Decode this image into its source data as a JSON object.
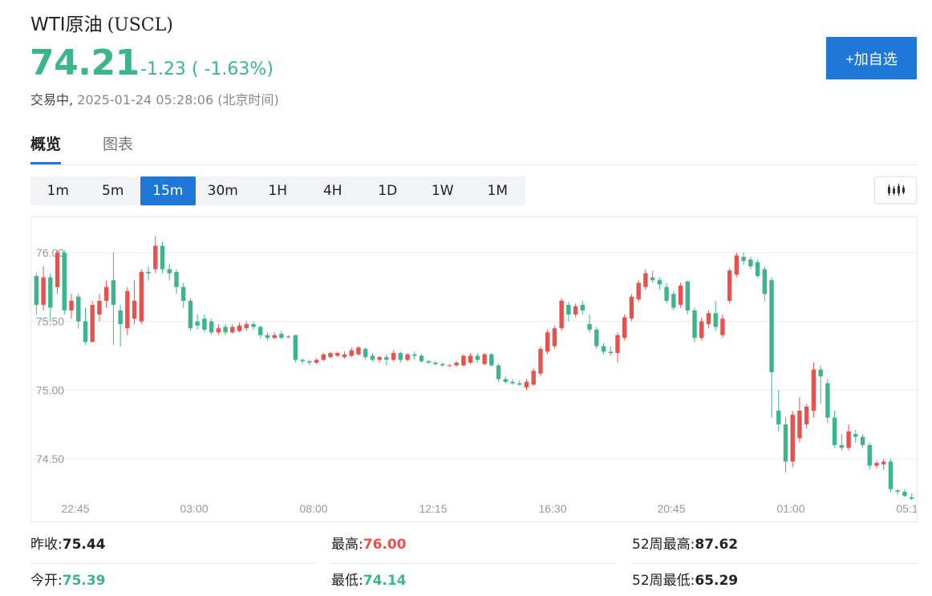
{
  "header": {
    "name": "WTI原油",
    "code": "(USCL)",
    "price": "74.21",
    "change": "-1.23 ( -1.63%)",
    "status_label": "交易中,",
    "timestamp": "2025-01-24 05:28:06 (北京时间)",
    "add_button": "+加自选"
  },
  "tabs": [
    "概览",
    "图表"
  ],
  "periods": [
    "1m",
    "5m",
    "15m",
    "30m",
    "1H",
    "4H",
    "1D",
    "1W",
    "1M"
  ],
  "active_period": "15m",
  "colors": {
    "up": "#e8524e",
    "down": "#3cb58c",
    "accent": "#1f78d8"
  },
  "stats": {
    "prev_close_label": "昨收:",
    "prev_close": "75.44",
    "open_label": "今开:",
    "open": "75.39",
    "high_label": "最高:",
    "high": "76.00",
    "low_label": "最低:",
    "low": "74.14",
    "wk52_high_label": "52周最高:",
    "wk52_high": "87.62",
    "wk52_low_label": "52周最低:",
    "wk52_low": "65.29"
  },
  "chart_data": {
    "type": "candlestick",
    "y_ticks": [
      "76.00",
      "75.50",
      "75.00",
      "74.50"
    ],
    "x_ticks": [
      "22:45",
      "03:00",
      "08:00",
      "12:15",
      "16:30",
      "20:45",
      "01:00",
      "05:1"
    ],
    "ylim": [
      74.2,
      76.25
    ],
    "grid": true,
    "series": [
      {
        "o": 75.83,
        "c": 75.62,
        "h": 75.85,
        "l": 75.55
      },
      {
        "o": 75.62,
        "c": 75.82,
        "h": 75.9,
        "l": 75.58
      },
      {
        "o": 75.82,
        "c": 75.6,
        "h": 75.85,
        "l": 75.5
      },
      {
        "o": 75.75,
        "c": 76.0,
        "h": 76.02,
        "l": 75.7
      },
      {
        "o": 76.0,
        "c": 75.58,
        "h": 76.02,
        "l": 75.55
      },
      {
        "o": 75.58,
        "c": 75.65,
        "h": 75.7,
        "l": 75.52
      },
      {
        "o": 75.68,
        "c": 75.5,
        "h": 75.7,
        "l": 75.45
      },
      {
        "o": 75.5,
        "c": 75.35,
        "h": 75.6,
        "l": 75.33
      },
      {
        "o": 75.35,
        "c": 75.62,
        "h": 75.65,
        "l": 75.35
      },
      {
        "o": 75.55,
        "c": 75.65,
        "h": 75.7,
        "l": 75.5
      },
      {
        "o": 75.65,
        "c": 75.75,
        "h": 75.8,
        "l": 75.6
      },
      {
        "o": 75.8,
        "c": 75.62,
        "h": 76.0,
        "l": 75.33
      },
      {
        "o": 75.58,
        "c": 75.48,
        "h": 75.62,
        "l": 75.32
      },
      {
        "o": 75.45,
        "c": 75.72,
        "h": 75.75,
        "l": 75.4
      },
      {
        "o": 75.52,
        "c": 75.65,
        "h": 75.8,
        "l": 75.48
      },
      {
        "o": 75.5,
        "c": 75.86,
        "h": 75.88,
        "l": 75.48
      },
      {
        "o": 75.86,
        "c": 75.85,
        "h": 75.9,
        "l": 75.8
      },
      {
        "o": 75.88,
        "c": 76.05,
        "h": 76.12,
        "l": 75.85
      },
      {
        "o": 76.05,
        "c": 75.88,
        "h": 76.08,
        "l": 75.85
      },
      {
        "o": 75.88,
        "c": 75.85,
        "h": 75.92,
        "l": 75.8
      },
      {
        "o": 75.86,
        "c": 75.75,
        "h": 75.88,
        "l": 75.7
      },
      {
        "o": 75.75,
        "c": 75.65,
        "h": 75.78,
        "l": 75.6
      },
      {
        "o": 75.65,
        "c": 75.45,
        "h": 75.67,
        "l": 75.43
      },
      {
        "o": 75.5,
        "c": 75.47,
        "h": 75.55,
        "l": 75.44
      },
      {
        "o": 75.52,
        "c": 75.44,
        "h": 75.55,
        "l": 75.42
      },
      {
        "o": 75.5,
        "c": 75.42,
        "h": 75.52,
        "l": 75.4
      },
      {
        "o": 75.42,
        "c": 75.45,
        "h": 75.48,
        "l": 75.4
      },
      {
        "o": 75.46,
        "c": 75.42,
        "h": 75.48,
        "l": 75.4
      },
      {
        "o": 75.42,
        "c": 75.46,
        "h": 75.48,
        "l": 75.41
      },
      {
        "o": 75.43,
        "c": 75.47,
        "h": 75.49,
        "l": 75.42
      },
      {
        "o": 75.45,
        "c": 75.48,
        "h": 75.5,
        "l": 75.43
      },
      {
        "o": 75.48,
        "c": 75.46,
        "h": 75.5,
        "l": 75.44
      },
      {
        "o": 75.46,
        "c": 75.4,
        "h": 75.47,
        "l": 75.38
      },
      {
        "o": 75.4,
        "c": 75.38,
        "h": 75.42,
        "l": 75.36
      },
      {
        "o": 75.38,
        "c": 75.4,
        "h": 75.42,
        "l": 75.37
      },
      {
        "o": 75.41,
        "c": 75.38,
        "h": 75.43,
        "l": 75.37
      },
      {
        "o": 75.39,
        "c": 75.39,
        "h": 75.4,
        "l": 75.38
      },
      {
        "o": 75.4,
        "c": 75.22,
        "h": 75.4,
        "l": 75.2
      },
      {
        "o": 75.22,
        "c": 75.21,
        "h": 75.23,
        "l": 75.19
      },
      {
        "o": 75.21,
        "c": 75.2,
        "h": 75.22,
        "l": 75.18
      },
      {
        "o": 75.2,
        "c": 75.22,
        "h": 75.23,
        "l": 75.19
      },
      {
        "o": 75.22,
        "c": 75.26,
        "h": 75.27,
        "l": 75.21
      },
      {
        "o": 75.24,
        "c": 75.27,
        "h": 75.28,
        "l": 75.23
      },
      {
        "o": 75.25,
        "c": 75.27,
        "h": 75.28,
        "l": 75.24
      },
      {
        "o": 75.24,
        "c": 75.26,
        "h": 75.28,
        "l": 75.23
      },
      {
        "o": 75.25,
        "c": 75.29,
        "h": 75.31,
        "l": 75.24
      },
      {
        "o": 75.26,
        "c": 75.31,
        "h": 75.32,
        "l": 75.25
      },
      {
        "o": 75.3,
        "c": 75.24,
        "h": 75.31,
        "l": 75.22
      },
      {
        "o": 75.25,
        "c": 75.22,
        "h": 75.27,
        "l": 75.21
      },
      {
        "o": 75.22,
        "c": 75.24,
        "h": 75.25,
        "l": 75.2
      },
      {
        "o": 75.24,
        "c": 75.22,
        "h": 75.26,
        "l": 75.18
      },
      {
        "o": 75.22,
        "c": 75.27,
        "h": 75.29,
        "l": 75.21
      },
      {
        "o": 75.27,
        "c": 75.22,
        "h": 75.28,
        "l": 75.2
      },
      {
        "o": 75.22,
        "c": 75.26,
        "h": 75.27,
        "l": 75.21
      },
      {
        "o": 75.26,
        "c": 75.25,
        "h": 75.28,
        "l": 75.22
      },
      {
        "o": 75.25,
        "c": 75.21,
        "h": 75.26,
        "l": 75.2
      },
      {
        "o": 75.21,
        "c": 75.2,
        "h": 75.22,
        "l": 75.19
      },
      {
        "o": 75.2,
        "c": 75.19,
        "h": 75.21,
        "l": 75.18
      },
      {
        "o": 75.19,
        "c": 75.18,
        "h": 75.2,
        "l": 75.17
      },
      {
        "o": 75.18,
        "c": 75.18,
        "h": 75.19,
        "l": 75.17
      },
      {
        "o": 75.18,
        "c": 75.2,
        "h": 75.21,
        "l": 75.17
      },
      {
        "o": 75.18,
        "c": 75.25,
        "h": 75.26,
        "l": 75.17
      },
      {
        "o": 75.2,
        "c": 75.25,
        "h": 75.27,
        "l": 75.19
      },
      {
        "o": 75.25,
        "c": 75.22,
        "h": 75.27,
        "l": 75.2
      },
      {
        "o": 75.19,
        "c": 75.26,
        "h": 75.27,
        "l": 75.18
      },
      {
        "o": 75.26,
        "c": 75.18,
        "h": 75.27,
        "l": 75.17
      },
      {
        "o": 75.18,
        "c": 75.08,
        "h": 75.19,
        "l": 75.06
      },
      {
        "o": 75.08,
        "c": 75.06,
        "h": 75.1,
        "l": 75.05
      },
      {
        "o": 75.06,
        "c": 75.05,
        "h": 75.08,
        "l": 75.04
      },
      {
        "o": 75.05,
        "c": 75.04,
        "h": 75.07,
        "l": 75.03
      },
      {
        "o": 75.02,
        "c": 75.06,
        "h": 75.08,
        "l": 75.0
      },
      {
        "o": 75.04,
        "c": 75.14,
        "h": 75.16,
        "l": 75.03
      },
      {
        "o": 75.12,
        "c": 75.3,
        "h": 75.32,
        "l": 75.1
      },
      {
        "o": 75.28,
        "c": 75.42,
        "h": 75.44,
        "l": 75.26
      },
      {
        "o": 75.32,
        "c": 75.45,
        "h": 75.47,
        "l": 75.3
      },
      {
        "o": 75.45,
        "c": 75.65,
        "h": 75.67,
        "l": 75.43
      },
      {
        "o": 75.62,
        "c": 75.55,
        "h": 75.64,
        "l": 75.5
      },
      {
        "o": 75.55,
        "c": 75.61,
        "h": 75.63,
        "l": 75.53
      },
      {
        "o": 75.62,
        "c": 75.58,
        "h": 75.65,
        "l": 75.55
      },
      {
        "o": 75.48,
        "c": 75.44,
        "h": 75.55,
        "l": 75.42
      },
      {
        "o": 75.44,
        "c": 75.32,
        "h": 75.46,
        "l": 75.3
      },
      {
        "o": 75.32,
        "c": 75.28,
        "h": 75.34,
        "l": 75.26
      },
      {
        "o": 75.28,
        "c": 75.27,
        "h": 75.32,
        "l": 75.25
      },
      {
        "o": 75.27,
        "c": 75.4,
        "h": 75.42,
        "l": 75.2
      },
      {
        "o": 75.38,
        "c": 75.53,
        "h": 75.55,
        "l": 75.36
      },
      {
        "o": 75.52,
        "c": 75.68,
        "h": 75.7,
        "l": 75.5
      },
      {
        "o": 75.66,
        "c": 75.78,
        "h": 75.8,
        "l": 75.64
      },
      {
        "o": 75.75,
        "c": 75.85,
        "h": 75.88,
        "l": 75.73
      },
      {
        "o": 75.82,
        "c": 75.8,
        "h": 75.87,
        "l": 75.78
      },
      {
        "o": 75.8,
        "c": 75.77,
        "h": 75.82,
        "l": 75.73
      },
      {
        "o": 75.75,
        "c": 75.65,
        "h": 75.78,
        "l": 75.63
      },
      {
        "o": 75.7,
        "c": 75.6,
        "h": 75.72,
        "l": 75.58
      },
      {
        "o": 75.62,
        "c": 75.76,
        "h": 75.78,
        "l": 75.6
      },
      {
        "o": 75.79,
        "c": 75.58,
        "h": 75.8,
        "l": 75.55
      },
      {
        "o": 75.58,
        "c": 75.38,
        "h": 75.6,
        "l": 75.35
      },
      {
        "o": 75.38,
        "c": 75.5,
        "h": 75.53,
        "l": 75.36
      },
      {
        "o": 75.48,
        "c": 75.56,
        "h": 75.58,
        "l": 75.45
      },
      {
        "o": 75.56,
        "c": 75.46,
        "h": 75.65,
        "l": 75.43
      },
      {
        "o": 75.4,
        "c": 75.52,
        "h": 75.55,
        "l": 75.38
      },
      {
        "o": 75.65,
        "c": 75.87,
        "h": 75.89,
        "l": 75.63
      },
      {
        "o": 75.84,
        "c": 75.98,
        "h": 76.0,
        "l": 75.82
      },
      {
        "o": 75.97,
        "c": 75.94,
        "h": 76.0,
        "l": 75.91
      },
      {
        "o": 75.95,
        "c": 75.9,
        "h": 75.97,
        "l": 75.88
      },
      {
        "o": 75.93,
        "c": 75.83,
        "h": 75.95,
        "l": 75.82
      },
      {
        "o": 75.88,
        "c": 75.7,
        "h": 75.9,
        "l": 75.65
      },
      {
        "o": 75.8,
        "c": 75.13,
        "h": 75.82,
        "l": 74.8
      },
      {
        "o": 74.85,
        "c": 74.75,
        "h": 75.0,
        "l": 74.7
      },
      {
        "o": 74.75,
        "c": 74.48,
        "h": 74.8,
        "l": 74.4
      },
      {
        "o": 74.48,
        "c": 74.82,
        "h": 74.85,
        "l": 74.44
      },
      {
        "o": 74.65,
        "c": 74.85,
        "h": 74.95,
        "l": 74.62
      },
      {
        "o": 74.75,
        "c": 74.88,
        "h": 74.9,
        "l": 74.72
      },
      {
        "o": 74.85,
        "c": 75.15,
        "h": 75.2,
        "l": 74.8
      },
      {
        "o": 75.15,
        "c": 75.1,
        "h": 75.18,
        "l": 74.9
      },
      {
        "o": 75.05,
        "c": 74.8,
        "h": 75.08,
        "l": 74.76
      },
      {
        "o": 74.8,
        "c": 74.6,
        "h": 74.85,
        "l": 74.58
      },
      {
        "o": 74.6,
        "c": 74.58,
        "h": 74.68,
        "l": 74.56
      },
      {
        "o": 74.58,
        "c": 74.7,
        "h": 74.75,
        "l": 74.56
      },
      {
        "o": 74.68,
        "c": 74.66,
        "h": 74.71,
        "l": 74.62
      },
      {
        "o": 74.66,
        "c": 74.6,
        "h": 74.68,
        "l": 74.58
      },
      {
        "o": 74.6,
        "c": 74.45,
        "h": 74.62,
        "l": 74.42
      },
      {
        "o": 74.45,
        "c": 74.47,
        "h": 74.49,
        "l": 74.43
      },
      {
        "o": 74.46,
        "c": 74.48,
        "h": 74.5,
        "l": 74.42
      },
      {
        "o": 74.48,
        "c": 74.28,
        "h": 74.5,
        "l": 74.26
      },
      {
        "o": 74.27,
        "c": 74.26,
        "h": 74.28,
        "l": 74.24
      },
      {
        "o": 74.26,
        "c": 74.23,
        "h": 74.28,
        "l": 74.22
      },
      {
        "o": 74.22,
        "c": 74.21,
        "h": 74.25,
        "l": 74.2
      }
    ]
  }
}
